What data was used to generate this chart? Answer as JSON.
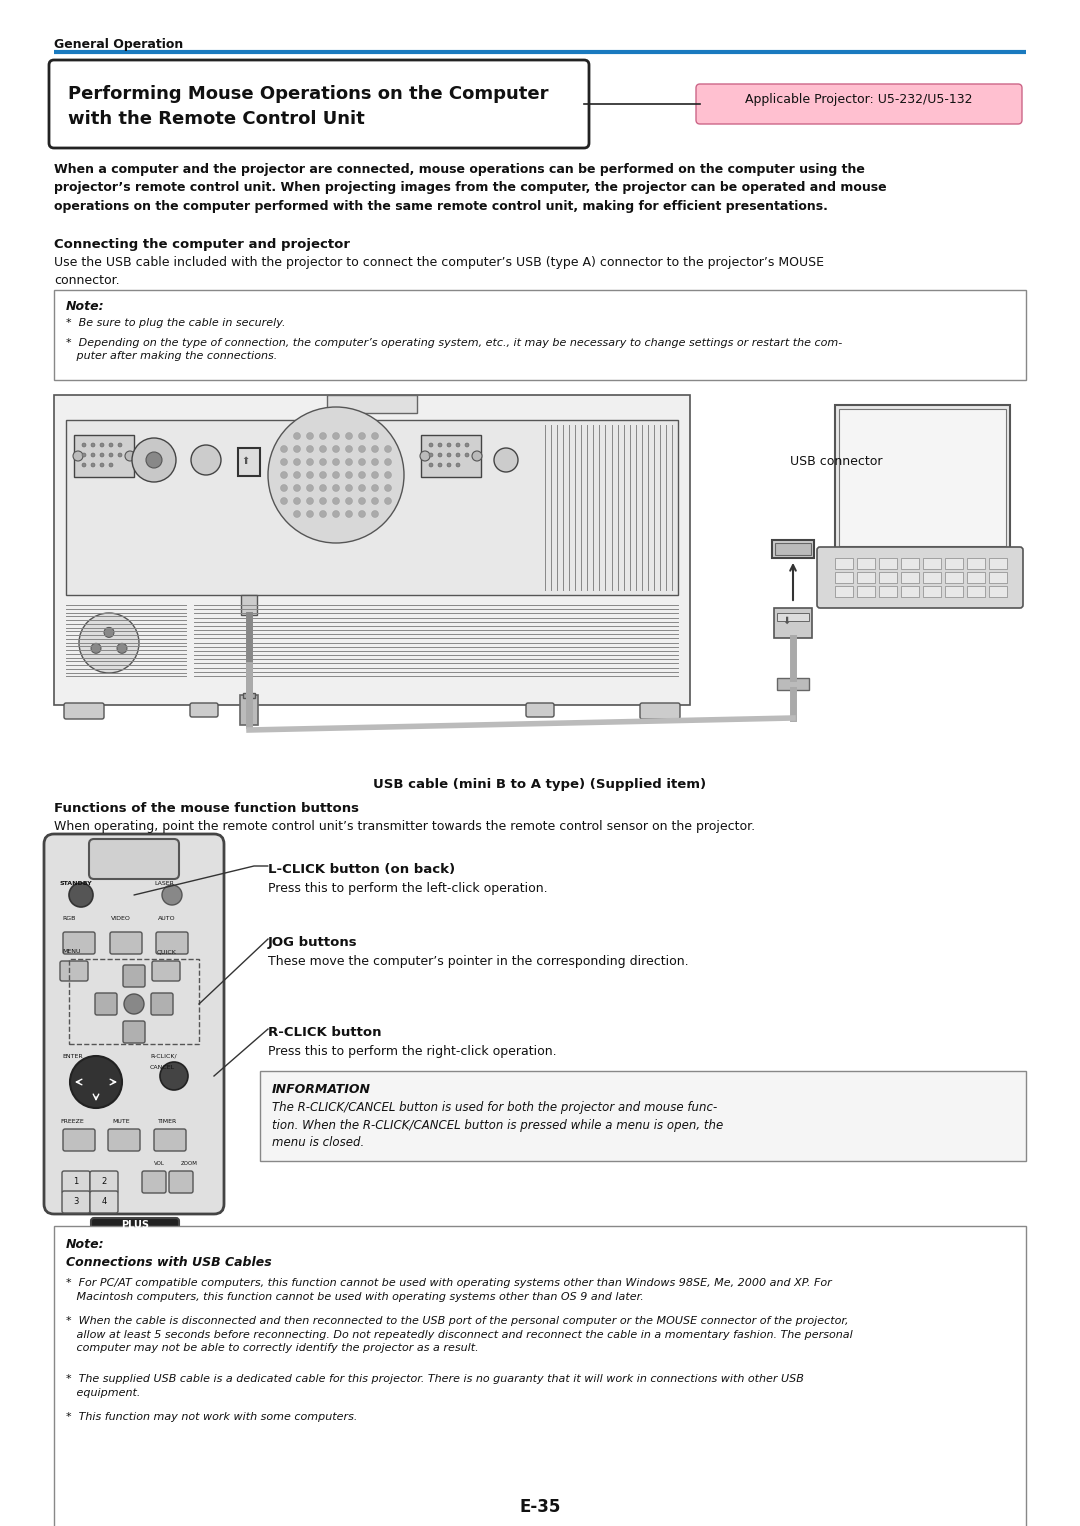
{
  "page_bg": "#ffffff",
  "header_section_label": "General Operation",
  "header_line_color": "#1a7abf",
  "title_box_text_line1": "Performing Mouse Operations on the Computer",
  "title_box_text_line2": "with the Remote Control Unit",
  "applicable_label": "Applicable Projector: U5-232/U5-132",
  "applicable_bg": "#ffc0d0",
  "applicable_border": "#cc6688",
  "intro_text": "When a computer and the projector are connected, mouse operations can be performed on the computer using the\nprojector’s remote control unit. When projecting images from the computer, the projector can be operated and mouse\noperations on the computer performed with the same remote control unit, making for efficient presentations.",
  "section1_heading": "Connecting the computer and projector",
  "section1_body": "Use the USB cable included with the projector to connect the computer’s USB (type A) connector to the projector’s MOUSE\nconnector.",
  "note1_title": "Note:",
  "note1_bullet1": "*  Be sure to plug the cable in securely.",
  "note1_bullet2": "*  Depending on the type of connection, the computer’s operating system, etc., it may be necessary to change settings or restart the com-\n   puter after making the connections.",
  "usb_caption": "USB cable (mini B to A type) (Supplied item)",
  "usb_label": "USB connector",
  "section2_heading": "Functions of the mouse function buttons",
  "section2_body": "When operating, point the remote control unit’s transmitter towards the remote control sensor on the projector.",
  "label_lclick_title": "L-CLICK button (on back)",
  "label_lclick_body": "Press this to perform the left-click operation.",
  "label_jog_title": "JOG buttons",
  "label_jog_body": "These move the computer’s pointer in the corresponding direction.",
  "label_rclick_title": "R-CLICK button",
  "label_rclick_body": "Press this to perform the right-click operation.",
  "info_title": "INFORMATION",
  "info_body": "The R-CLICK/CANCEL button is used for both the projector and mouse func-\ntion. When the R-CLICK/CANCEL button is pressed while a menu is open, the\nmenu is closed.",
  "note2_title": "Note:",
  "note2_connections_bold": "Connections with USB Cables",
  "note2_bullet1": "*  For PC/AT compatible computers, this function cannot be used with operating systems other than Windows 98SE, Me, 2000 and XP. For\n   Macintosh computers, this function cannot be used with operating systems other than OS 9 and later.",
  "note2_bullet2": "*  When the cable is disconnected and then reconnected to the USB port of the personal computer or the MOUSE connector of the projector,\n   allow at least 5 seconds before reconnecting. Do not repeatedly disconnect and reconnect the cable in a momentary fashion. The personal\n   computer may not be able to correctly identify the projector as a result.",
  "note2_bullet3": "*  The supplied USB cable is a dedicated cable for this projector. There is no guaranty that it will work in connections with other USB\n   equipment.",
  "note2_bullet4": "*  This function may not work with some computers.",
  "footer_text": "E-35"
}
